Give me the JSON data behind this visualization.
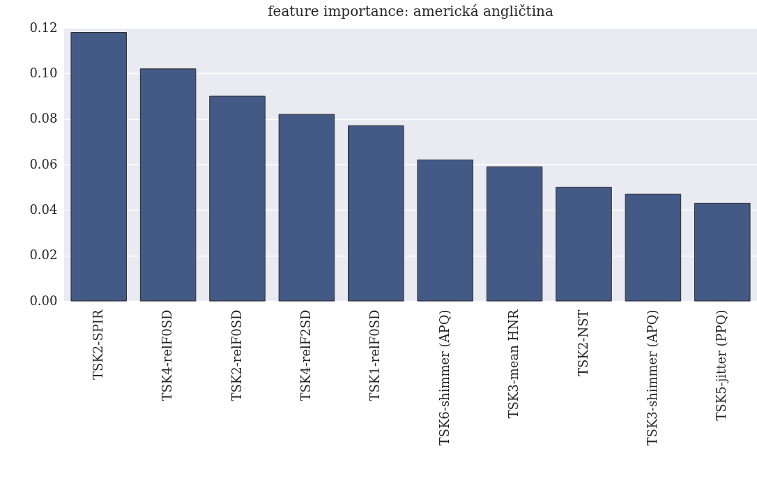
{
  "chart_data": {
    "type": "bar",
    "title": "feature importance: americká angličtina",
    "categories": [
      "TSK2-SPIR",
      "TSK4-relF0SD",
      "TSK2-relF0SD",
      "TSK4-relF2SD",
      "TSK1-relF0SD",
      "TSK6-shimmer (APQ)",
      "TSK3-mean HNR",
      "TSK2-NST",
      "TSK3-shimmer (APQ)",
      "TSK5-jitter (PPQ)"
    ],
    "values": [
      0.118,
      0.102,
      0.09,
      0.082,
      0.077,
      0.062,
      0.059,
      0.05,
      0.047,
      0.043
    ],
    "color": "#445a86",
    "ylim": [
      0,
      0.12
    ],
    "yticks": [
      {
        "value": 0,
        "label": "0.00"
      },
      {
        "value": 0.02,
        "label": "0.02"
      },
      {
        "value": 0.04,
        "label": "0.04"
      },
      {
        "value": 0.06,
        "label": "0.06"
      },
      {
        "value": 0.08,
        "label": "0.08"
      },
      {
        "value": 0.1,
        "label": "0.10"
      },
      {
        "value": 0.12,
        "label": "0.12"
      }
    ],
    "grid": "y"
  }
}
